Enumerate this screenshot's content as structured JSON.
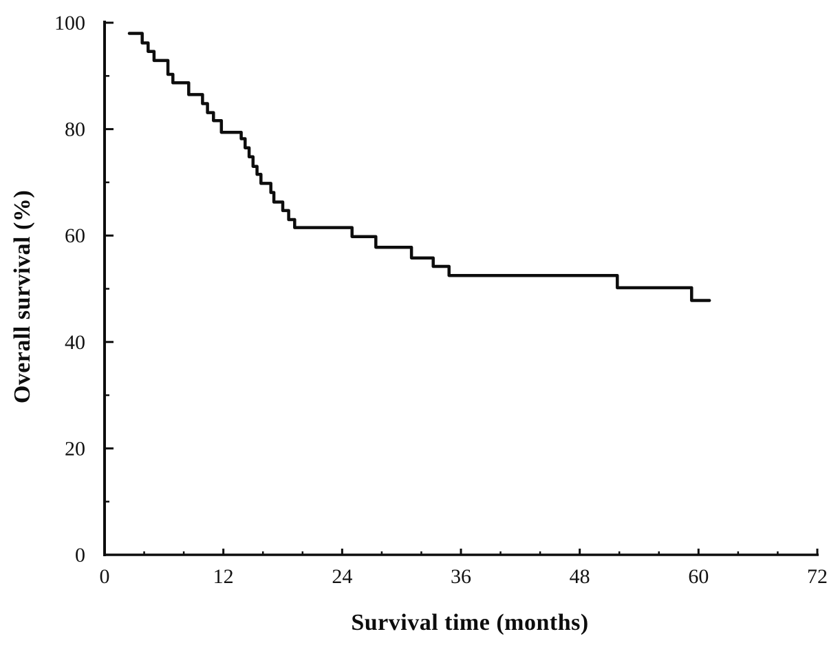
{
  "figure": {
    "background_color": "#ffffff",
    "ink_color": "#0d0d0d"
  },
  "chart_data": {
    "type": "line",
    "subtype": "kaplan-meier-step-curve",
    "title": "",
    "xlabel": "Survival time (months)",
    "ylabel": "Overall survival (%)",
    "xlim": [
      0,
      72
    ],
    "ylim": [
      0,
      100
    ],
    "grid": false,
    "legend": false,
    "x_axis": {
      "major_ticks": [
        0,
        12,
        24,
        36,
        48,
        60,
        72
      ],
      "major_tick_labels": [
        "0",
        "12",
        "24",
        "36",
        "48",
        "60",
        "72"
      ],
      "minor_ticks": [
        4,
        8,
        16,
        20,
        28,
        32,
        40,
        44,
        52,
        56,
        64,
        68
      ],
      "tick_direction": "in"
    },
    "y_axis": {
      "major_ticks": [
        0,
        20,
        40,
        60,
        80,
        100
      ],
      "major_tick_labels": [
        "0",
        "20",
        "40",
        "60",
        "80",
        "100"
      ],
      "minor_ticks": [
        10,
        30,
        50,
        70,
        90
      ],
      "tick_direction": "in"
    },
    "series": [
      {
        "name": "Overall survival",
        "color": "#0d0d0d",
        "line_width": 4.5,
        "steps_month_percent": [
          [
            2.5,
            98.0
          ],
          [
            3.8,
            96.2
          ],
          [
            4.4,
            94.6
          ],
          [
            5.0,
            92.9
          ],
          [
            6.4,
            90.3
          ],
          [
            6.9,
            88.7
          ],
          [
            8.5,
            86.5
          ],
          [
            9.9,
            84.8
          ],
          [
            10.4,
            83.1
          ],
          [
            11.0,
            81.6
          ],
          [
            11.8,
            79.4
          ],
          [
            13.8,
            78.2
          ],
          [
            14.2,
            76.5
          ],
          [
            14.6,
            74.8
          ],
          [
            15.0,
            73.0
          ],
          [
            15.4,
            71.5
          ],
          [
            15.8,
            69.8
          ],
          [
            16.8,
            68.1
          ],
          [
            17.1,
            66.3
          ],
          [
            18.0,
            64.7
          ],
          [
            18.6,
            63.0
          ],
          [
            19.2,
            61.5
          ],
          [
            25.0,
            59.8
          ],
          [
            27.4,
            57.8
          ],
          [
            31.0,
            55.8
          ],
          [
            33.2,
            54.2
          ],
          [
            34.8,
            52.5
          ],
          [
            51.8,
            50.2
          ],
          [
            59.3,
            47.8
          ]
        ],
        "end_month": 61.1
      }
    ]
  }
}
